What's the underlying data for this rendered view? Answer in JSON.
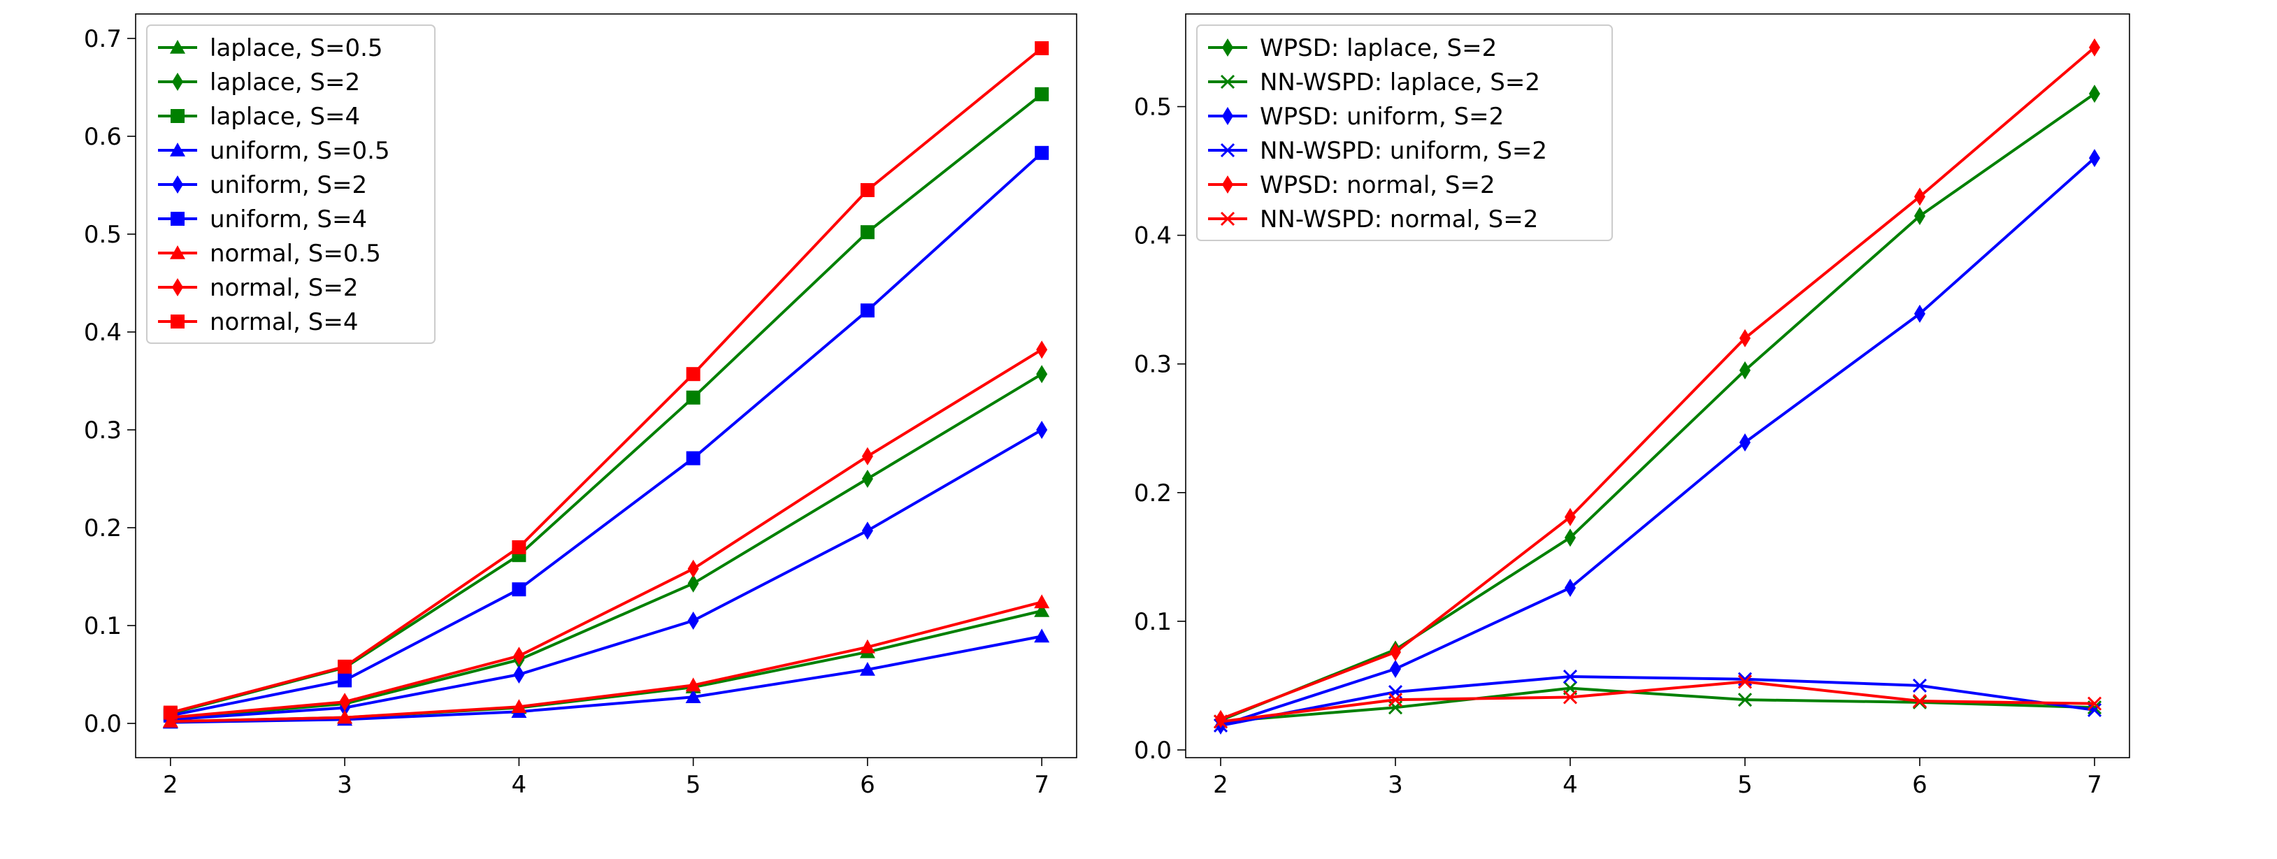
{
  "chart_data": [
    {
      "type": "line",
      "title": "",
      "xlabel": "",
      "ylabel": "",
      "xlim": [
        1.8,
        7.2
      ],
      "ylim": [
        -0.035,
        0.725
      ],
      "xticks": [
        2,
        3,
        4,
        5,
        6,
        7
      ],
      "yticks": [
        0.0,
        0.1,
        0.2,
        0.3,
        0.4,
        0.5,
        0.6,
        0.7
      ],
      "ytick_labels": [
        "0.0",
        "0.1",
        "0.2",
        "0.3",
        "0.4",
        "0.5",
        "0.6",
        "0.7"
      ],
      "grid": false,
      "legend_position": "upper-left",
      "x": [
        2,
        3,
        4,
        5,
        6,
        7
      ],
      "series": [
        {
          "name": "laplace, S=0.5",
          "color": "#008000",
          "marker": "triangle",
          "values": [
            0.002,
            0.006,
            0.016,
            0.037,
            0.073,
            0.115
          ]
        },
        {
          "name": "laplace, S=2",
          "color": "#008000",
          "marker": "diamond",
          "values": [
            0.005,
            0.02,
            0.065,
            0.143,
            0.25,
            0.357
          ]
        },
        {
          "name": "laplace, S=4",
          "color": "#008000",
          "marker": "square",
          "values": [
            0.01,
            0.057,
            0.172,
            0.333,
            0.502,
            0.643
          ]
        },
        {
          "name": "uniform, S=0.5",
          "color": "#0000ff",
          "marker": "triangle",
          "values": [
            0.001,
            0.004,
            0.012,
            0.027,
            0.055,
            0.089
          ]
        },
        {
          "name": "uniform, S=2",
          "color": "#0000ff",
          "marker": "diamond",
          "values": [
            0.004,
            0.016,
            0.05,
            0.105,
            0.197,
            0.3
          ]
        },
        {
          "name": "uniform, S=4",
          "color": "#0000ff",
          "marker": "square",
          "values": [
            0.008,
            0.044,
            0.137,
            0.271,
            0.422,
            0.583
          ]
        },
        {
          "name": "normal, S=0.5",
          "color": "#ff0000",
          "marker": "triangle",
          "values": [
            0.002,
            0.006,
            0.017,
            0.039,
            0.078,
            0.124
          ]
        },
        {
          "name": "normal, S=2",
          "color": "#ff0000",
          "marker": "diamond",
          "values": [
            0.006,
            0.022,
            0.069,
            0.158,
            0.273,
            0.382
          ]
        },
        {
          "name": "normal, S=4",
          "color": "#ff0000",
          "marker": "square",
          "values": [
            0.011,
            0.058,
            0.18,
            0.357,
            0.545,
            0.69
          ]
        }
      ]
    },
    {
      "type": "line",
      "title": "",
      "xlabel": "",
      "ylabel": "",
      "xlim": [
        1.8,
        7.2
      ],
      "ylim": [
        -0.006,
        0.572
      ],
      "xticks": [
        2,
        3,
        4,
        5,
        6,
        7
      ],
      "yticks": [
        0.0,
        0.1,
        0.2,
        0.3,
        0.4,
        0.5
      ],
      "ytick_labels": [
        "0.0",
        "0.1",
        "0.2",
        "0.3",
        "0.4",
        "0.5"
      ],
      "grid": false,
      "legend_position": "upper-left",
      "x": [
        2,
        3,
        4,
        5,
        6,
        7
      ],
      "series": [
        {
          "name": "WPSD: laplace, S=2",
          "color": "#008000",
          "marker": "diamond",
          "values": [
            0.023,
            0.078,
            0.165,
            0.295,
            0.415,
            0.51
          ]
        },
        {
          "name": "NN-WSPD: laplace, S=2",
          "color": "#008000",
          "marker": "x",
          "values": [
            0.022,
            0.033,
            0.048,
            0.039,
            0.037,
            0.033
          ]
        },
        {
          "name": "WPSD: uniform, S=2",
          "color": "#0000ff",
          "marker": "diamond",
          "values": [
            0.019,
            0.063,
            0.126,
            0.239,
            0.339,
            0.46
          ]
        },
        {
          "name": "NN-WSPD: uniform, S=2",
          "color": "#0000ff",
          "marker": "x",
          "values": [
            0.019,
            0.045,
            0.057,
            0.055,
            0.05,
            0.031
          ]
        },
        {
          "name": "WPSD: normal, S=2",
          "color": "#ff0000",
          "marker": "diamond",
          "values": [
            0.024,
            0.076,
            0.181,
            0.32,
            0.43,
            0.546
          ]
        },
        {
          "name": "NN-WSPD: normal, S=2",
          "color": "#ff0000",
          "marker": "x",
          "values": [
            0.022,
            0.039,
            0.041,
            0.053,
            0.038,
            0.036
          ]
        }
      ]
    }
  ]
}
